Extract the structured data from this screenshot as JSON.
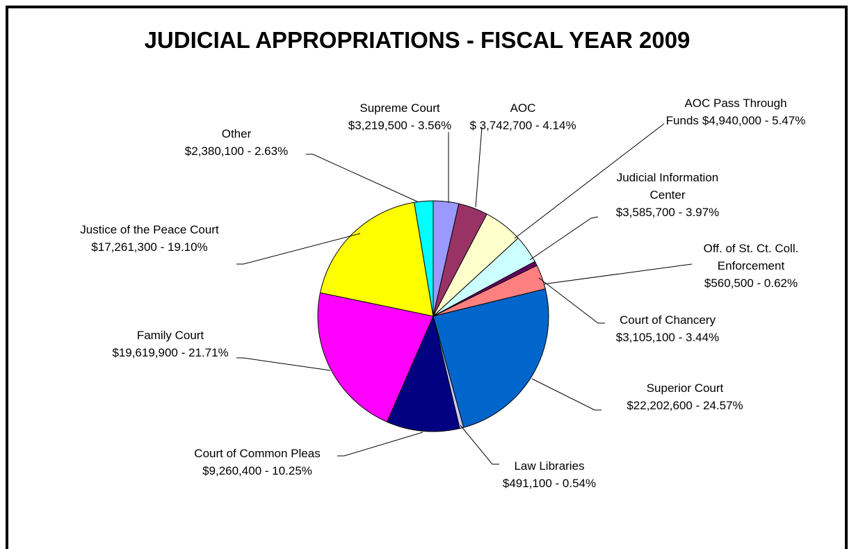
{
  "chart_data": {
    "type": "pie",
    "title": "JUDICIAL APPROPRIATIONS - FISCAL YEAR 2009",
    "categories": [
      "Supreme Court",
      "AOC",
      "AOC Pass Through Funds",
      "Judicial Information Center",
      "Off. of St. Ct. Coll. Enforcement",
      "Court of Chancery",
      "Superior Court",
      "Law Libraries",
      "Court of Common Pleas",
      "Family Court",
      "Justice of the Peace Court",
      "Other"
    ],
    "values": [
      3219500,
      3742700,
      4940000,
      3585700,
      560500,
      3105100,
      22202600,
      491100,
      9260400,
      19619900,
      17261300,
      2380100
    ],
    "value_labels": [
      "$3,219,500 - 3.56%",
      "$ 3,742,700 - 4.14%",
      "$4,940,000 - 5.47%",
      "$3,585,700 - 3.97%",
      "$560,500 - 0.62%",
      "$3,105,100 - 3.44%",
      "$22,202,600 - 24.57%",
      "$491,100 - 0.54%",
      "$9,260,400 - 10.25%",
      "$19,619,900 - 21.71%",
      "$17,261,300 - 19.10%",
      "$2,380,100 - 2.63%"
    ],
    "colors": [
      "#9999ff",
      "#993366",
      "#ffffcc",
      "#ccffff",
      "#660066",
      "#ff8080",
      "#0066cc",
      "#ccccff",
      "#000080",
      "#ff00ff",
      "#ffff00",
      "#00ffff"
    ]
  }
}
